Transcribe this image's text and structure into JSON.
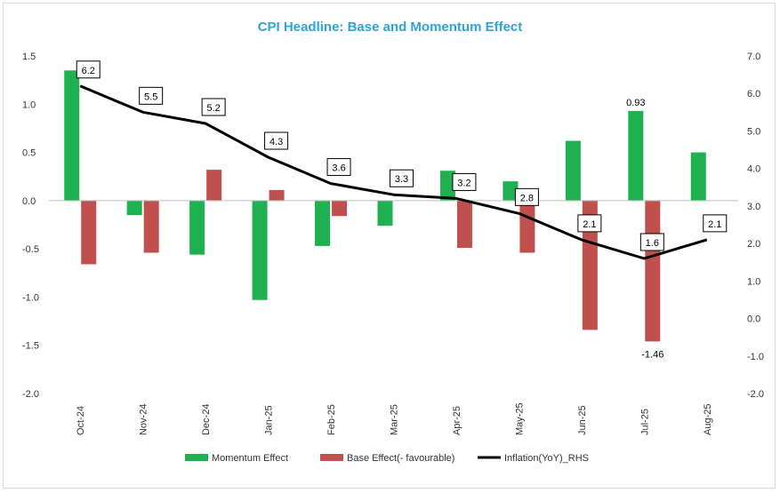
{
  "chart_data": {
    "type": "bar",
    "title": "CPI Headline: Base and Momentum Effect",
    "categories": [
      "Oct-24",
      "Nov-24",
      "Dec-24",
      "Jan-25",
      "Feb-25",
      "Mar-25",
      "Apr-25",
      "May-25",
      "Jun-25",
      "Jul-25",
      "Aug-25"
    ],
    "series": [
      {
        "name": "Momentum Effect",
        "type": "bar",
        "axis": "left",
        "color": "#1fb050",
        "values": [
          1.35,
          -0.15,
          -0.56,
          -1.03,
          -0.47,
          -0.26,
          0.31,
          0.2,
          0.62,
          0.93,
          0.5
        ]
      },
      {
        "name": "Base Effect(- favourable)",
        "type": "bar",
        "axis": "left",
        "color": "#c0504d",
        "values": [
          -0.66,
          -0.54,
          0.32,
          0.11,
          -0.16,
          null,
          -0.49,
          -0.54,
          -1.34,
          -1.46,
          null
        ]
      },
      {
        "name": "Inflation(YoY)_RHS",
        "type": "line",
        "axis": "right",
        "color": "#000000",
        "values": [
          6.2,
          5.5,
          5.2,
          4.3,
          3.6,
          3.3,
          3.2,
          2.8,
          2.1,
          1.6,
          2.1
        ]
      }
    ],
    "left_axis": {
      "min": -2.0,
      "max": 1.5,
      "step": 0.5,
      "ticks": [
        "1.5",
        "1.0",
        "0.5",
        "0.0",
        "-0.5",
        "-1.0",
        "-1.5",
        "-2.0"
      ]
    },
    "right_axis": {
      "min": -2.0,
      "max": 7.0,
      "step": 1.0,
      "ticks": [
        "7.0",
        "6.0",
        "5.0",
        "4.0",
        "3.0",
        "2.0",
        "1.0",
        "0.0",
        "-1.0",
        "-2.0"
      ]
    },
    "line_labels": [
      "6.2",
      "5.5",
      "5.2",
      "4.3",
      "3.6",
      "3.3",
      "3.2",
      "2.8",
      "2.1",
      "1.6",
      "2.1"
    ],
    "bar_annotations": [
      {
        "series": 0,
        "index": 9,
        "text": "0.93"
      },
      {
        "series": 1,
        "index": 9,
        "text": "-1.46"
      }
    ],
    "grid": false,
    "legend_position": "bottom"
  }
}
